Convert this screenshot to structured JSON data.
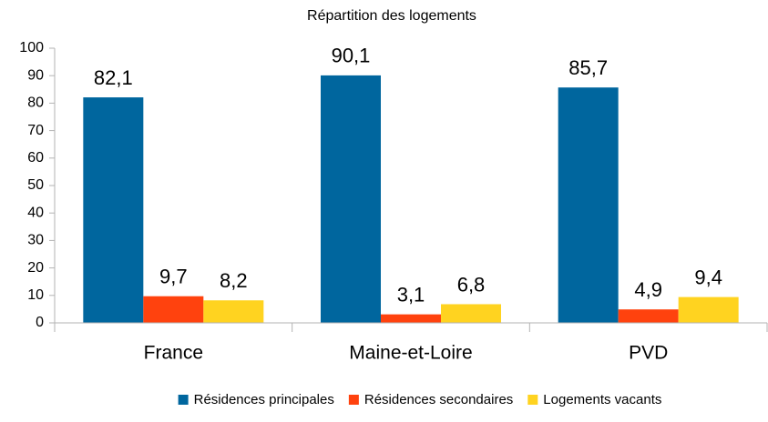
{
  "chart_data": {
    "type": "bar",
    "title": "Répartition des logements",
    "categories": [
      "France",
      "Maine-et-Loire",
      "PVD"
    ],
    "series": [
      {
        "name": "Résidences principales",
        "color": "#00669e",
        "values": [
          82.1,
          90.1,
          85.7
        ],
        "value_labels": [
          "82,1",
          "90,1",
          "85,7"
        ]
      },
      {
        "name": "Résidences secondaires",
        "color": "#ff420e",
        "values": [
          9.7,
          3.1,
          4.9
        ],
        "value_labels": [
          "9,7",
          "3,1",
          "4,9"
        ]
      },
      {
        "name": "Logements vacants",
        "color": "#ffd320",
        "values": [
          8.2,
          6.8,
          9.4
        ],
        "value_labels": [
          "8,2",
          "6,8",
          "9,4"
        ]
      }
    ],
    "ylim": [
      0,
      100
    ],
    "yticks": [
      0,
      10,
      20,
      30,
      40,
      50,
      60,
      70,
      80,
      90,
      100
    ],
    "legend": "bottom"
  }
}
